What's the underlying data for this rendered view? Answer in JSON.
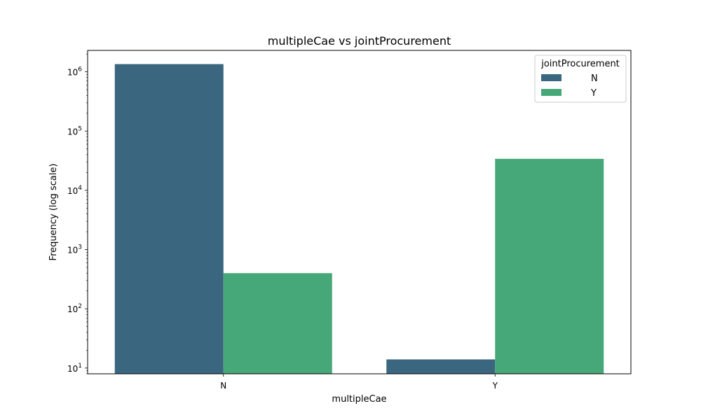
{
  "chart_data": {
    "type": "bar",
    "title": "multipleCae vs jointProcurement",
    "xlabel": "multipleCae",
    "ylabel": "Frequency (log scale)",
    "yscale": "log",
    "ylim": [
      8,
      2300000
    ],
    "categories": [
      "N",
      "Y"
    ],
    "legend": {
      "title": "jointProcurement",
      "placement": "top-right"
    },
    "series": [
      {
        "name": "N",
        "color": "#3b6680",
        "values": [
          1350000,
          14
        ]
      },
      {
        "name": "Y",
        "color": "#46a879",
        "values": [
          400,
          34000
        ]
      }
    ],
    "y_ticks": [
      {
        "value": 10,
        "base": "10",
        "exp": "1"
      },
      {
        "value": 100,
        "base": "10",
        "exp": "2"
      },
      {
        "value": 1000,
        "base": "10",
        "exp": "3"
      },
      {
        "value": 10000,
        "base": "10",
        "exp": "4"
      },
      {
        "value": 100000,
        "base": "10",
        "exp": "5"
      },
      {
        "value": 1000000,
        "base": "10",
        "exp": "6"
      }
    ],
    "grid": false
  }
}
